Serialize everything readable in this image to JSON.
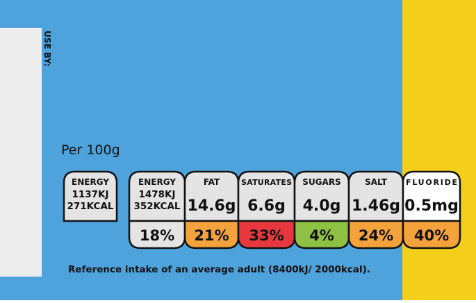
{
  "use_by": "USE BY:",
  "per": "Per 100g",
  "badges": [
    {
      "name": "ENERGY",
      "lines": [
        "1137KJ",
        "271KCAL"
      ],
      "fill": "#e4e4e4"
    },
    {
      "name": "ENERGY",
      "lines": [
        "1478KJ",
        "352KCAL"
      ],
      "percent": "18%",
      "fill": "#e4e4e4",
      "percent_fill": "#e4e4e4"
    },
    {
      "name": "FAT",
      "lines": [
        "14.6g"
      ],
      "percent": "21%",
      "fill": "#e4e4e4",
      "percent_fill": "#f4a23b"
    },
    {
      "name": "SATURATES",
      "lines": [
        "6.6g"
      ],
      "percent": "33%",
      "fill": "#e4e4e4",
      "percent_fill": "#e8383f"
    },
    {
      "name": "SUGARS",
      "lines": [
        "4.0g"
      ],
      "percent": "4%",
      "fill": "#e4e4e4",
      "percent_fill": "#8dc043"
    },
    {
      "name": "SALT",
      "lines": [
        "1.46g"
      ],
      "percent": "24%",
      "fill": "#e4e4e4",
      "percent_fill": "#f4a23b"
    },
    {
      "name": "FLUORIDE",
      "lines": [
        "0.5mg"
      ],
      "percent": "40%",
      "fill": "#ffffff",
      "percent_fill": "#f4a23b"
    }
  ],
  "footnote": "Reference intake of an average adult (8400kJ/ 2000kcal)."
}
